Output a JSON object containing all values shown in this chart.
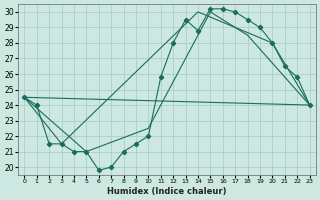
{
  "xlabel": "Humidex (Indice chaleur)",
  "xlim": [
    -0.5,
    23.5
  ],
  "ylim": [
    19.5,
    30.5
  ],
  "xticks": [
    0,
    1,
    2,
    3,
    4,
    5,
    6,
    7,
    8,
    9,
    10,
    11,
    12,
    13,
    14,
    15,
    16,
    17,
    18,
    19,
    20,
    21,
    22,
    23
  ],
  "yticks": [
    20,
    21,
    22,
    23,
    24,
    25,
    26,
    27,
    28,
    29,
    30
  ],
  "background_color": "#cce8e0",
  "grid_color": "#aad0c8",
  "line_color": "#1a6b60",
  "line1": {
    "x": [
      0,
      1,
      2,
      3,
      4,
      5,
      6,
      7,
      8,
      9,
      10,
      11,
      12,
      13,
      14,
      15,
      16,
      17,
      18,
      19,
      20,
      21,
      22,
      23
    ],
    "y": [
      24.5,
      24.0,
      21.5,
      21.5,
      21.0,
      21.0,
      19.8,
      20.0,
      21.0,
      21.5,
      22.0,
      25.8,
      28.0,
      29.5,
      28.8,
      30.2,
      30.2,
      30.0,
      29.5,
      29.0,
      28.0,
      26.5,
      25.8,
      24.0
    ]
  },
  "line2": {
    "x": [
      0,
      23
    ],
    "y": [
      24.5,
      24.0
    ]
  },
  "line3": {
    "x": [
      0,
      3,
      14,
      20,
      23
    ],
    "y": [
      24.5,
      21.5,
      30.0,
      28.0,
      24.0
    ]
  },
  "line4": {
    "x": [
      0,
      5,
      10,
      15,
      18,
      23
    ],
    "y": [
      24.5,
      21.0,
      22.5,
      30.0,
      28.5,
      24.0
    ]
  }
}
